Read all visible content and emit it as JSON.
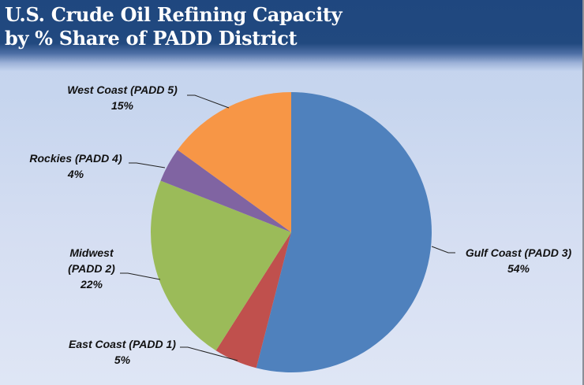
{
  "header": {
    "title_line1": "U.S. Crude Oil Refining Capacity",
    "title_line2": "by % Share of PADD District"
  },
  "labels": {
    "gulf_name": "Gulf Coast (PADD 3)",
    "gulf_pct": "54%",
    "east_name": "East Coast (PADD 1)",
    "east_pct": "5%",
    "midwest_name1": "Midwest",
    "midwest_name2": "(PADD 2)",
    "midwest_pct": "22%",
    "rockies_name": "Rockies (PADD 4)",
    "rockies_pct": "4%",
    "west_name": "West Coast (PADD 5)",
    "west_pct": "15%"
  },
  "colors": {
    "gulf": "#4f81bd",
    "east": "#c0504d",
    "midwest": "#9bbb59",
    "rockies": "#8064a2",
    "west": "#f79646",
    "header": "#1f477f"
  },
  "chart_data": {
    "type": "pie",
    "title": "U.S. Crude Oil Refining Capacity by % Share of PADD District",
    "categories": [
      "Gulf Coast (PADD 3)",
      "East Coast (PADD 1)",
      "Midwest (PADD 2)",
      "Rockies (PADD 4)",
      "West Coast (PADD 5)"
    ],
    "values": [
      54,
      5,
      22,
      4,
      15
    ],
    "unit": "%",
    "start_angle": "12 o'clock, clockwise",
    "colors": [
      "#4f81bd",
      "#c0504d",
      "#9bbb59",
      "#8064a2",
      "#f79646"
    ],
    "legend": "none (data labels with leader lines)"
  }
}
